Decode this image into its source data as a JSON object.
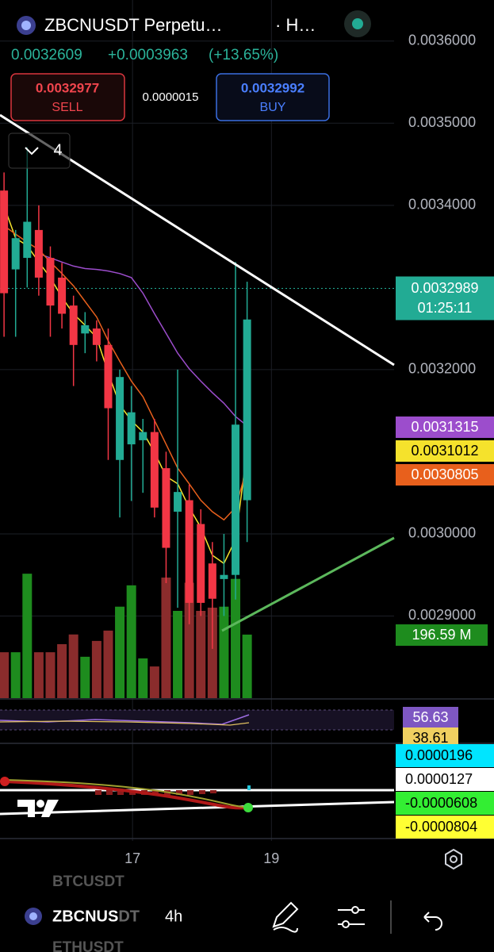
{
  "header": {
    "symbol": "ZBCNUSDT Perpetu…",
    "interval": "· H…",
    "last": "0.0032609",
    "change": "+0.0003963",
    "change_pct": "(+13.65%)"
  },
  "order": {
    "sell_price": "0.0032977",
    "sell": "SELL",
    "spread": "0.0000015",
    "buy_price": "0.0032992",
    "buy": "BUY"
  },
  "indicators_count": "4",
  "chart_data": {
    "type": "candlestick",
    "xlim": [
      -0.35,
      33.7
    ],
    "xticks": [
      {
        "value": 11.1,
        "label": "17"
      },
      {
        "value": 23.1,
        "label": "19"
      }
    ],
    "ylim": [
      0.0028,
      0.00365
    ],
    "yticks": [
      {
        "value": 0.0036,
        "label": "0.0036000"
      },
      {
        "value": 0.0035,
        "label": "0.0035000"
      },
      {
        "value": 0.0034,
        "label": "0.0034000"
      },
      {
        "value": 0.0032,
        "label": "0.0032000"
      },
      {
        "value": 0.003,
        "label": "0.0030000"
      },
      {
        "value": 0.0029,
        "label": "0.0029000"
      }
    ],
    "grid": true,
    "up_color": "#22ab94",
    "down_color": "#f23645",
    "open": [
      0.003418,
      0.003322,
      0.003336,
      0.00337,
      0.003336,
      0.003312,
      0.003278,
      0.003244,
      0.00325,
      0.00323,
      0.00309,
      0.003109,
      0.003114,
      0.003124,
      0.00308,
      0.003027,
      0.003041,
      0.003012,
      0.002964,
      0.002945,
      0.00295,
      0.003041
    ],
    "high": [
      0.00344,
      0.00337,
      0.003471,
      0.0034,
      0.00335,
      0.00333,
      0.00329,
      0.00327,
      0.00326,
      0.00325,
      0.0032,
      0.00318,
      0.00314,
      0.00314,
      0.0031,
      0.0032,
      0.00306,
      0.00303,
      0.00299,
      0.003,
      0.003331,
      0.003307
    ],
    "low": [
      0.00324,
      0.00324,
      0.0033,
      0.00329,
      0.00324,
      0.00325,
      0.00318,
      0.00322,
      0.00321,
      0.00309,
      0.00302,
      0.00304,
      0.00305,
      0.00302,
      0.00294,
      0.00291,
      0.00289,
      0.0029,
      0.00286,
      0.0029,
      0.00292,
      0.00299
    ],
    "close": [
      0.003293,
      0.00336,
      0.00338,
      0.003312,
      0.003278,
      0.003268,
      0.00323,
      0.003254,
      0.00323,
      0.003153,
      0.003191,
      0.003148,
      0.003124,
      0.003032,
      0.002983,
      0.003051,
      0.002916,
      0.002916,
      0.002921,
      0.00295,
      0.003133,
      0.003261
    ],
    "series": [
      {
        "color": "#9c4dcc",
        "label": "0.0031315",
        "label_text_color": "#ffffff",
        "values": [
          null,
          null,
          null,
          0.003341,
          0.003336,
          0.003331,
          0.003326,
          0.003323,
          0.003322,
          0.00332,
          0.003317,
          0.003312,
          0.003293,
          0.003268,
          0.003244,
          0.00322,
          0.003201,
          0.003186,
          0.003172,
          0.003159,
          0.003143,
          0.0031315
        ]
      },
      {
        "color": "#f5e22c",
        "label": "0.0031012",
        "label_text_color": "#000000",
        "values": [
          0.003399,
          0.00336,
          0.003351,
          0.003331,
          0.003312,
          0.003288,
          0.003268,
          0.003254,
          0.003239,
          0.003196,
          0.003157,
          0.003138,
          0.003124,
          0.003099,
          0.00307,
          0.003061,
          0.003032,
          0.003008,
          0.002974,
          0.002964,
          0.002993,
          0.0031012
        ]
      },
      {
        "color": "#e8601c",
        "label": "0.0030805",
        "label_text_color": "#ffffff",
        "values": [
          0.003375,
          0.003365,
          0.003355,
          0.003346,
          0.003331,
          0.003317,
          0.003302,
          0.003283,
          0.003264,
          0.003235,
          0.00321,
          0.003186,
          0.003167,
          0.003138,
          0.003109,
          0.00308,
          0.003061,
          0.003041,
          0.003027,
          0.003017,
          0.003032,
          0.0030805
        ]
      }
    ],
    "volume": {
      "ylim": [
        0,
        2160
      ],
      "up_color": "#1e8c1e",
      "down_color": "#8a2c2c",
      "values": [
        142,
        142,
        385,
        142,
        142,
        167,
        197,
        128,
        177,
        209,
        283,
        349,
        123,
        98,
        373,
        270,
        357,
        270,
        280,
        283,
        369,
        196.59
      ],
      "last_label": "196.59 M"
    },
    "last_price": {
      "value": 0.0032989,
      "label": "0.0032989"
    },
    "countdown": "01:25:11"
  },
  "rsi": {
    "labels": [
      "56.63",
      "38.61"
    ]
  },
  "macd": {
    "labels": [
      "0.0000196",
      "0.0000127",
      "-0.0000608",
      "-0.0000804"
    ]
  },
  "footer": {
    "watch_above": "BTCUSDT",
    "symbol": "ZBCNUSDT",
    "interval": "4h",
    "watch_below": "ETHUSDT"
  }
}
